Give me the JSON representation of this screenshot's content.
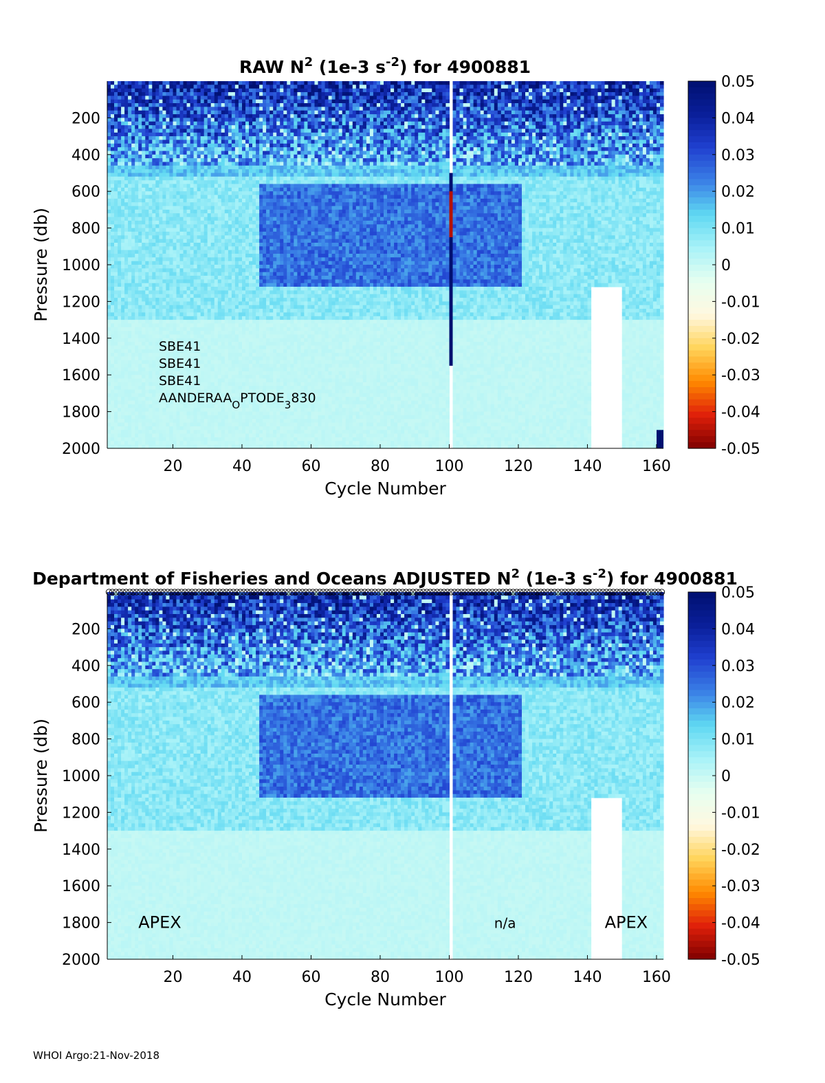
{
  "footer": "WHOI Argo:21-Nov-2018",
  "chart_data": [
    {
      "type": "heatmap",
      "title": {
        "prefix": "RAW N",
        "sup1": "2",
        "mid": " (1e-3 s",
        "sup2": "-2",
        "suffix": ") for 4900881"
      },
      "xlabel": "Cycle Number",
      "ylabel": "Pressure (db)",
      "xlim": [
        1,
        162
      ],
      "ylim": [
        0,
        2000
      ],
      "y_reversed": true,
      "xticks": [
        "20",
        "40",
        "60",
        "80",
        "100",
        "120",
        "140",
        "160"
      ],
      "yticks": [
        "200",
        "400",
        "600",
        "800",
        "1000",
        "1200",
        "1400",
        "1600",
        "1800",
        "2000"
      ],
      "colorbar": {
        "ticks": [
          "0.05",
          "0.04",
          "0.03",
          "0.02",
          "0.01",
          "0",
          "-0.01",
          "-0.02",
          "-0.03",
          "-0.04",
          "-0.05"
        ],
        "range": [
          -0.05,
          0.05
        ],
        "colormap": [
          "#7f0000",
          "#e0200a",
          "#ff8a00",
          "#ffd45a",
          "#fff8e0",
          "#e6fff0",
          "#a8f2f8",
          "#5fd8f2",
          "#3a80e6",
          "#2040d0",
          "#0a1f9a",
          "#001070"
        ]
      },
      "annotations": [
        {
          "lines": [
            [
              "SBE41"
            ],
            [
              "SBE41"
            ],
            [
              "SBE41"
            ],
            [
              "AANDERAA",
              {
                "sub": "O"
              },
              "PTODE",
              {
                "sub": "3"
              },
              "830"
            ]
          ]
        }
      ],
      "features": {
        "surface_layer": {
          "depth_db": [
            0,
            450
          ],
          "value": 0.035
        },
        "mid_band": {
          "cycles": [
            45,
            120
          ],
          "depth_db": [
            550,
            1100
          ],
          "value": 0.025
        },
        "missing_cycle": 100,
        "spike_cycle": 100,
        "spike_depth_db": [
          500,
          1550
        ],
        "spike_value": 0.05,
        "spike_negative_depth_db": [
          600,
          850
        ],
        "spike_negative_value": -0.045,
        "bottom_spike_cycle": 160,
        "background_value": 0.001
      }
    },
    {
      "type": "heatmap",
      "title": {
        "prefix": "Department of Fisheries and Oceans  ADJUSTED N",
        "sup1": "2",
        "mid": " (1e-3 s",
        "sup2": "-2",
        "suffix": ") for 4900881"
      },
      "xlabel": "Cycle Number",
      "ylabel": "Pressure (db)",
      "xlim": [
        1,
        162
      ],
      "ylim": [
        0,
        2000
      ],
      "y_reversed": true,
      "xticks": [
        "20",
        "40",
        "60",
        "80",
        "100",
        "120",
        "140",
        "160"
      ],
      "yticks": [
        "200",
        "400",
        "600",
        "800",
        "1000",
        "1200",
        "1400",
        "1600",
        "1800",
        "2000"
      ],
      "colorbar": {
        "ticks": [
          "0.05",
          "0.04",
          "0.03",
          "0.02",
          "0.01",
          "0",
          "-0.01",
          "-0.02",
          "-0.03",
          "-0.04",
          "-0.05"
        ],
        "range": [
          -0.05,
          0.05
        ],
        "colormap": [
          "#7f0000",
          "#e0200a",
          "#ff8a00",
          "#ffd45a",
          "#fff8e0",
          "#e6fff0",
          "#a8f2f8",
          "#5fd8f2",
          "#3a80e6",
          "#2040d0",
          "#0a1f9a",
          "#001070"
        ]
      },
      "annotations": [
        {
          "lines": [
            [
              "APEX"
            ]
          ],
          "x_cycle": 10,
          "depth_db": 1800
        },
        {
          "lines": [
            [
              "n/a"
            ]
          ],
          "x_cycle": 113,
          "depth_db": 1800
        },
        {
          "lines": [
            [
              "APEX"
            ]
          ],
          "x_cycle": 145,
          "depth_db": 1800
        }
      ],
      "top_markers": {
        "symbol": "circle",
        "depth_db": 0
      },
      "features": {
        "surface_layer": {
          "depth_db": [
            0,
            450
          ],
          "value": 0.035
        },
        "mid_band": {
          "cycles": [
            45,
            120
          ],
          "depth_db": [
            550,
            1100
          ],
          "value": 0.025
        },
        "missing_cycle": 100,
        "background_value": 0.001
      }
    }
  ]
}
